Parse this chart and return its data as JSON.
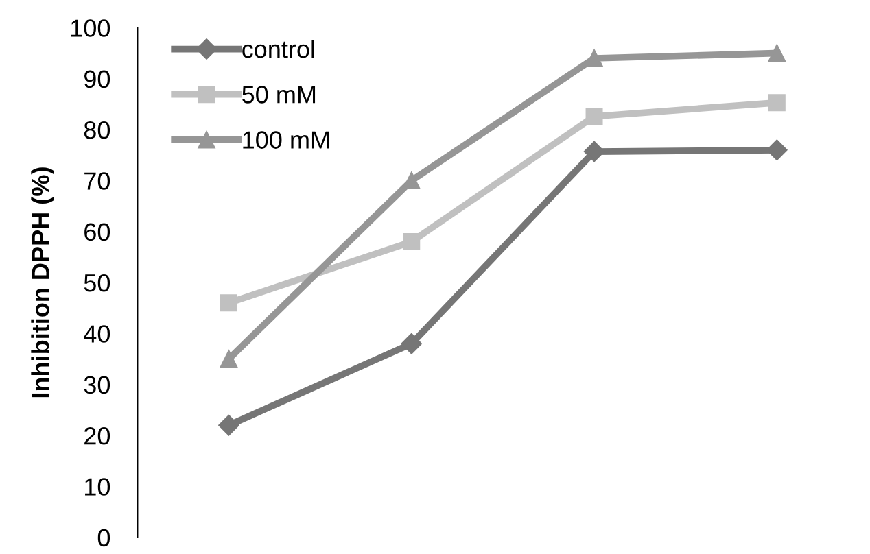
{
  "chart_data": {
    "type": "line",
    "ylabel": "Inhibition DPPH (%)",
    "categories": [
      null,
      null,
      null,
      null
    ],
    "series": [
      {
        "name": "control",
        "color": "#767676",
        "marker": "diamond",
        "values": [
          22,
          38,
          75.7,
          76
        ]
      },
      {
        "name": "50 mM",
        "color": "#c0c0c0",
        "marker": "square",
        "values": [
          46,
          58,
          82.6,
          85.3
        ]
      },
      {
        "name": "100 mM",
        "color": "#969696",
        "marker": "triangle",
        "values": [
          35,
          70,
          94,
          95
        ]
      }
    ],
    "ylim": [
      0,
      100
    ],
    "yticks": [
      0,
      10,
      20,
      30,
      40,
      50,
      60,
      70,
      80,
      90,
      100
    ],
    "grid": false,
    "legend": "top left",
    "line_style": "solid"
  }
}
